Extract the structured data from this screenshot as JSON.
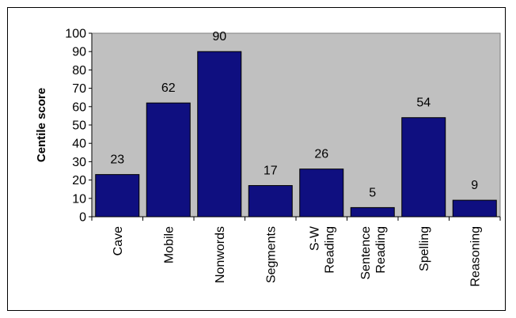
{
  "chart_data": {
    "type": "bar",
    "title": "",
    "xlabel": "",
    "ylabel": "Centile score",
    "ylim": [
      0,
      100
    ],
    "yticks": [
      0,
      10,
      20,
      30,
      40,
      50,
      60,
      70,
      80,
      90,
      100
    ],
    "categories": [
      "Cave",
      "Mobile",
      "Nonwords",
      "Segments",
      "S-W Reading",
      "Sentence Reading",
      "Spelling",
      "Reasoning"
    ],
    "category_lines": [
      [
        "Cave"
      ],
      [
        "Mobile"
      ],
      [
        "Nonwords"
      ],
      [
        "Segments"
      ],
      [
        "S-W",
        "Reading"
      ],
      [
        "Sentence",
        "Reading"
      ],
      [
        "Spelling"
      ],
      [
        "Reasoning"
      ]
    ],
    "values": [
      23,
      62,
      90,
      17,
      26,
      5,
      54,
      9
    ],
    "data_labels": true,
    "grid": false,
    "legend": "none",
    "colors": {
      "bar": "#0f0f80",
      "plot_background": "#c0c0c0"
    }
  }
}
